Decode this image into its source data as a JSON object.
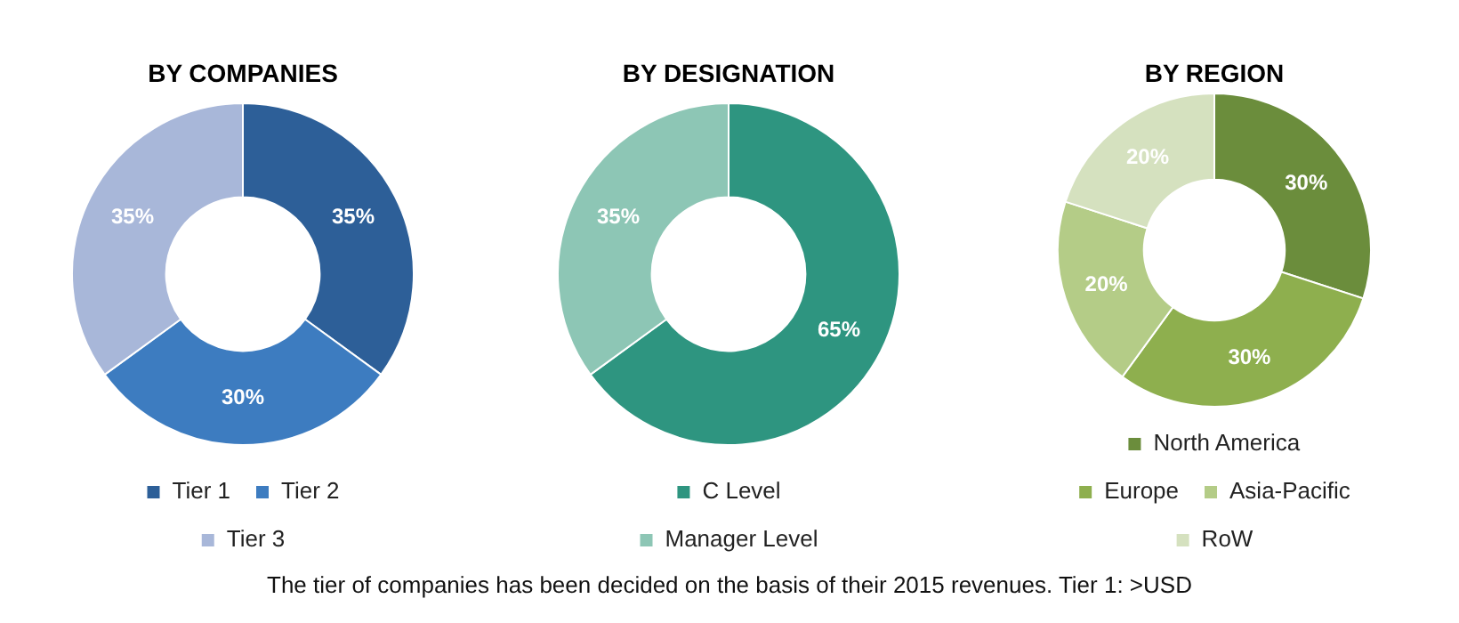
{
  "chart_data": [
    {
      "type": "donut",
      "title": "BY COMPANIES",
      "categories": [
        "Tier 1",
        "Tier 2",
        "Tier 3"
      ],
      "values": [
        35,
        30,
        35
      ],
      "value_labels": [
        "35%",
        "30%",
        "35%"
      ],
      "colors": [
        "#2d5f98",
        "#3d7cc0",
        "#a8b7d9"
      ],
      "legend": "bottom"
    },
    {
      "type": "donut",
      "title": "BY DESIGNATION",
      "categories": [
        "C Level",
        "Manager Level"
      ],
      "values": [
        65,
        35
      ],
      "value_labels": [
        "65%",
        "35%"
      ],
      "colors": [
        "#2e9580",
        "#8dc6b5"
      ],
      "legend": "bottom",
      "annotations": [
        "The tier of companies has been decided on the basis of their 2015 revenues. Tier 1: >USD"
      ]
    },
    {
      "type": "donut",
      "title": "BY REGION",
      "categories": [
        "North America",
        "Europe",
        "Asia-Pacific",
        "RoW"
      ],
      "values": [
        30,
        30,
        20,
        20
      ],
      "value_labels": [
        "30%",
        "30%",
        "20%",
        "20%"
      ],
      "colors": [
        "#6b8d3c",
        "#8eaf4e",
        "#b4cc87",
        "#d5e1bf"
      ],
      "legend": "bottom"
    }
  ]
}
